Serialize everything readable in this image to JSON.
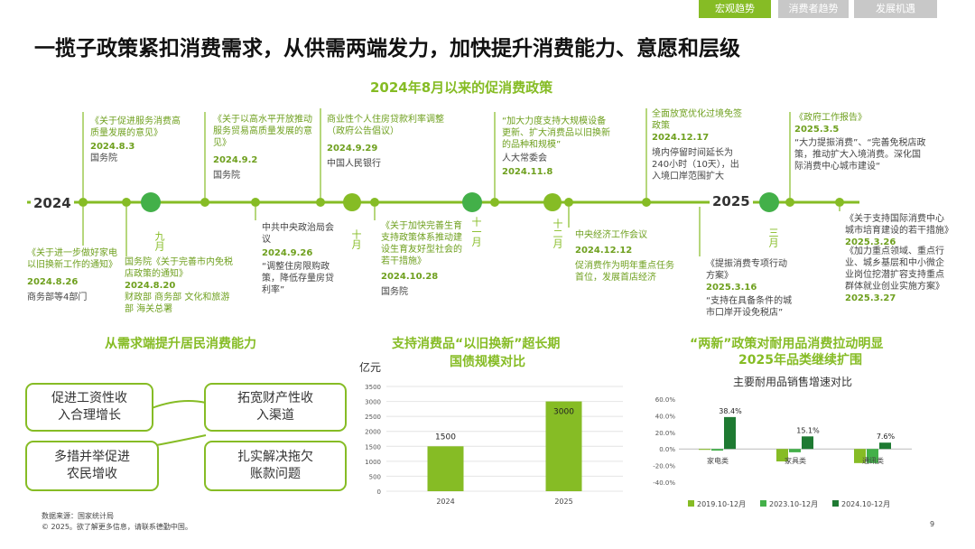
{
  "tabs": [
    "宏观趋势",
    "消费者趋势",
    "发展机遇"
  ],
  "title": "一揽子政策紧扣消费需求，从供需两端发力，加快提升消费能力、意愿和层级",
  "timeline": {
    "title": "2024年8月以来的促消费政策",
    "year_start": "2024",
    "year_end": "2025",
    "months": [
      "九月",
      "十月",
      "十一月",
      "十二月",
      "三月"
    ],
    "items": [
      {
        "text": "《关于促进服务消费高质量发展的意见》",
        "date": "2024.8.3",
        "org": "国务院"
      },
      {
        "text": "《关于进一步做好家电以旧换新工作的通知》",
        "date": "2024.8.26",
        "org": "商务部等4部门"
      },
      {
        "text": "国务院《关于完善市内免税店政策的通知》",
        "date": "2024.8.20",
        "org": "财政部 商务部 文化和旅游部 海关总署"
      },
      {
        "text": "《关于以高水平开放推动服务贸易高质量发展的意见》",
        "date": "2024.9.2",
        "org": "国务院"
      },
      {
        "text": "中共中央政治局会议",
        "date": "2024.9.26",
        "org": "“调整住房限购政策，降低存量房贷利率”"
      },
      {
        "text": "商业性个人住房贷款利率调整（政府公告倡议）",
        "date": "2024.9.29",
        "org": "中国人民银行"
      },
      {
        "text": "《关于加快完善生育支持政策体系推动建设生育友好型社会的若干措施》",
        "date": "2024.10.28",
        "org": "国务院"
      },
      {
        "text": "“加大力度支持大规模设备更新、扩大消费品以旧换新的品种和规模”",
        "date": "2024.11.8",
        "org": "人大常委会"
      },
      {
        "text": "中央经济工作会议",
        "date": "2024.12.12",
        "org": "促消费作为明年重点任务首位，发展首店经济"
      },
      {
        "text": "全面放宽优化过境免签政策",
        "date": "2024.12.17",
        "org": "境内停留时间延长为240小时（10天），出入境口岸范围扩大"
      },
      {
        "text": "《提振消费专项行动方案》",
        "date": "2025.3.16",
        "org": "“支持在具备条件的城市口岸开设免税店”"
      },
      {
        "text": "《政府工作报告》",
        "date": "2025.3.5",
        "org": "“大力提振消费”、“完善免税店政策，推动扩大入境消费。深化国际消费中心城市建设“"
      },
      {
        "text": "《关于支持国际消费中心城市培育建设的若干措施》",
        "date": "2025.3.26",
        "org": ""
      },
      {
        "text": "《加力重点领域、重点行业、城乡基层和中小微企业岗位挖潜扩容支持重点群体就业创业实施方案》",
        "date": "2025.3.27",
        "org": ""
      }
    ]
  },
  "demand": {
    "title": "从需求端提升居民消费能力",
    "boxes": [
      "促进工资性收入合理增长",
      "拓宽财产性收入渠道",
      "多措并举促进农民增收",
      "扎实解决拖欠账款问题"
    ]
  },
  "bond_chart": {
    "title_line1": "支持消费品“以旧换新”超长期",
    "title_line2": "国债规模对比",
    "unit": "亿元",
    "color": "#86BC25"
  },
  "durables_chart": {
    "title_line1": "“两新”政策对耐用品消费拉动明显",
    "title_line2": "2025年品类继续扩围",
    "inner_title": "主要耐用品销售增速对比",
    "colors": [
      "#86BC25",
      "#43B049",
      "#1E7A32"
    ]
  },
  "chart_data": [
    {
      "type": "bar",
      "categories": [
        "2024",
        "2025"
      ],
      "values": [
        1500,
        3000
      ],
      "ylim": [
        0,
        3500
      ],
      "yticks": [
        0,
        500,
        1000,
        1500,
        2000,
        2500,
        3000,
        3500
      ],
      "ylabel": "亿元",
      "data_labels": [
        "1500",
        "3000"
      ]
    },
    {
      "type": "bar",
      "categories": [
        "家电类",
        "家具类",
        "通讯类"
      ],
      "series": [
        {
          "name": "2019.10-12月",
          "values": [
            0,
            -15,
            -17
          ]
        },
        {
          "name": "2023.10-12月",
          "values": [
            -2,
            -4,
            -17
          ]
        },
        {
          "name": "2024.10-12月",
          "values": [
            38.4,
            15.1,
            7.6
          ]
        }
      ],
      "data_labels": [
        "38.4%",
        "15.1%",
        "7.6%"
      ],
      "ylim": [
        -40,
        60
      ],
      "yticks": [
        "60.0%",
        "40.0%",
        "20.0%",
        "0.0%",
        "-20.0%",
        "-40.0%"
      ],
      "legend": "bottom"
    }
  ],
  "footer": {
    "source": "数据来源：国家统计局",
    "copyright": "© 2025。欲了解更多信息，请联系德勤中国。",
    "page": "9"
  }
}
